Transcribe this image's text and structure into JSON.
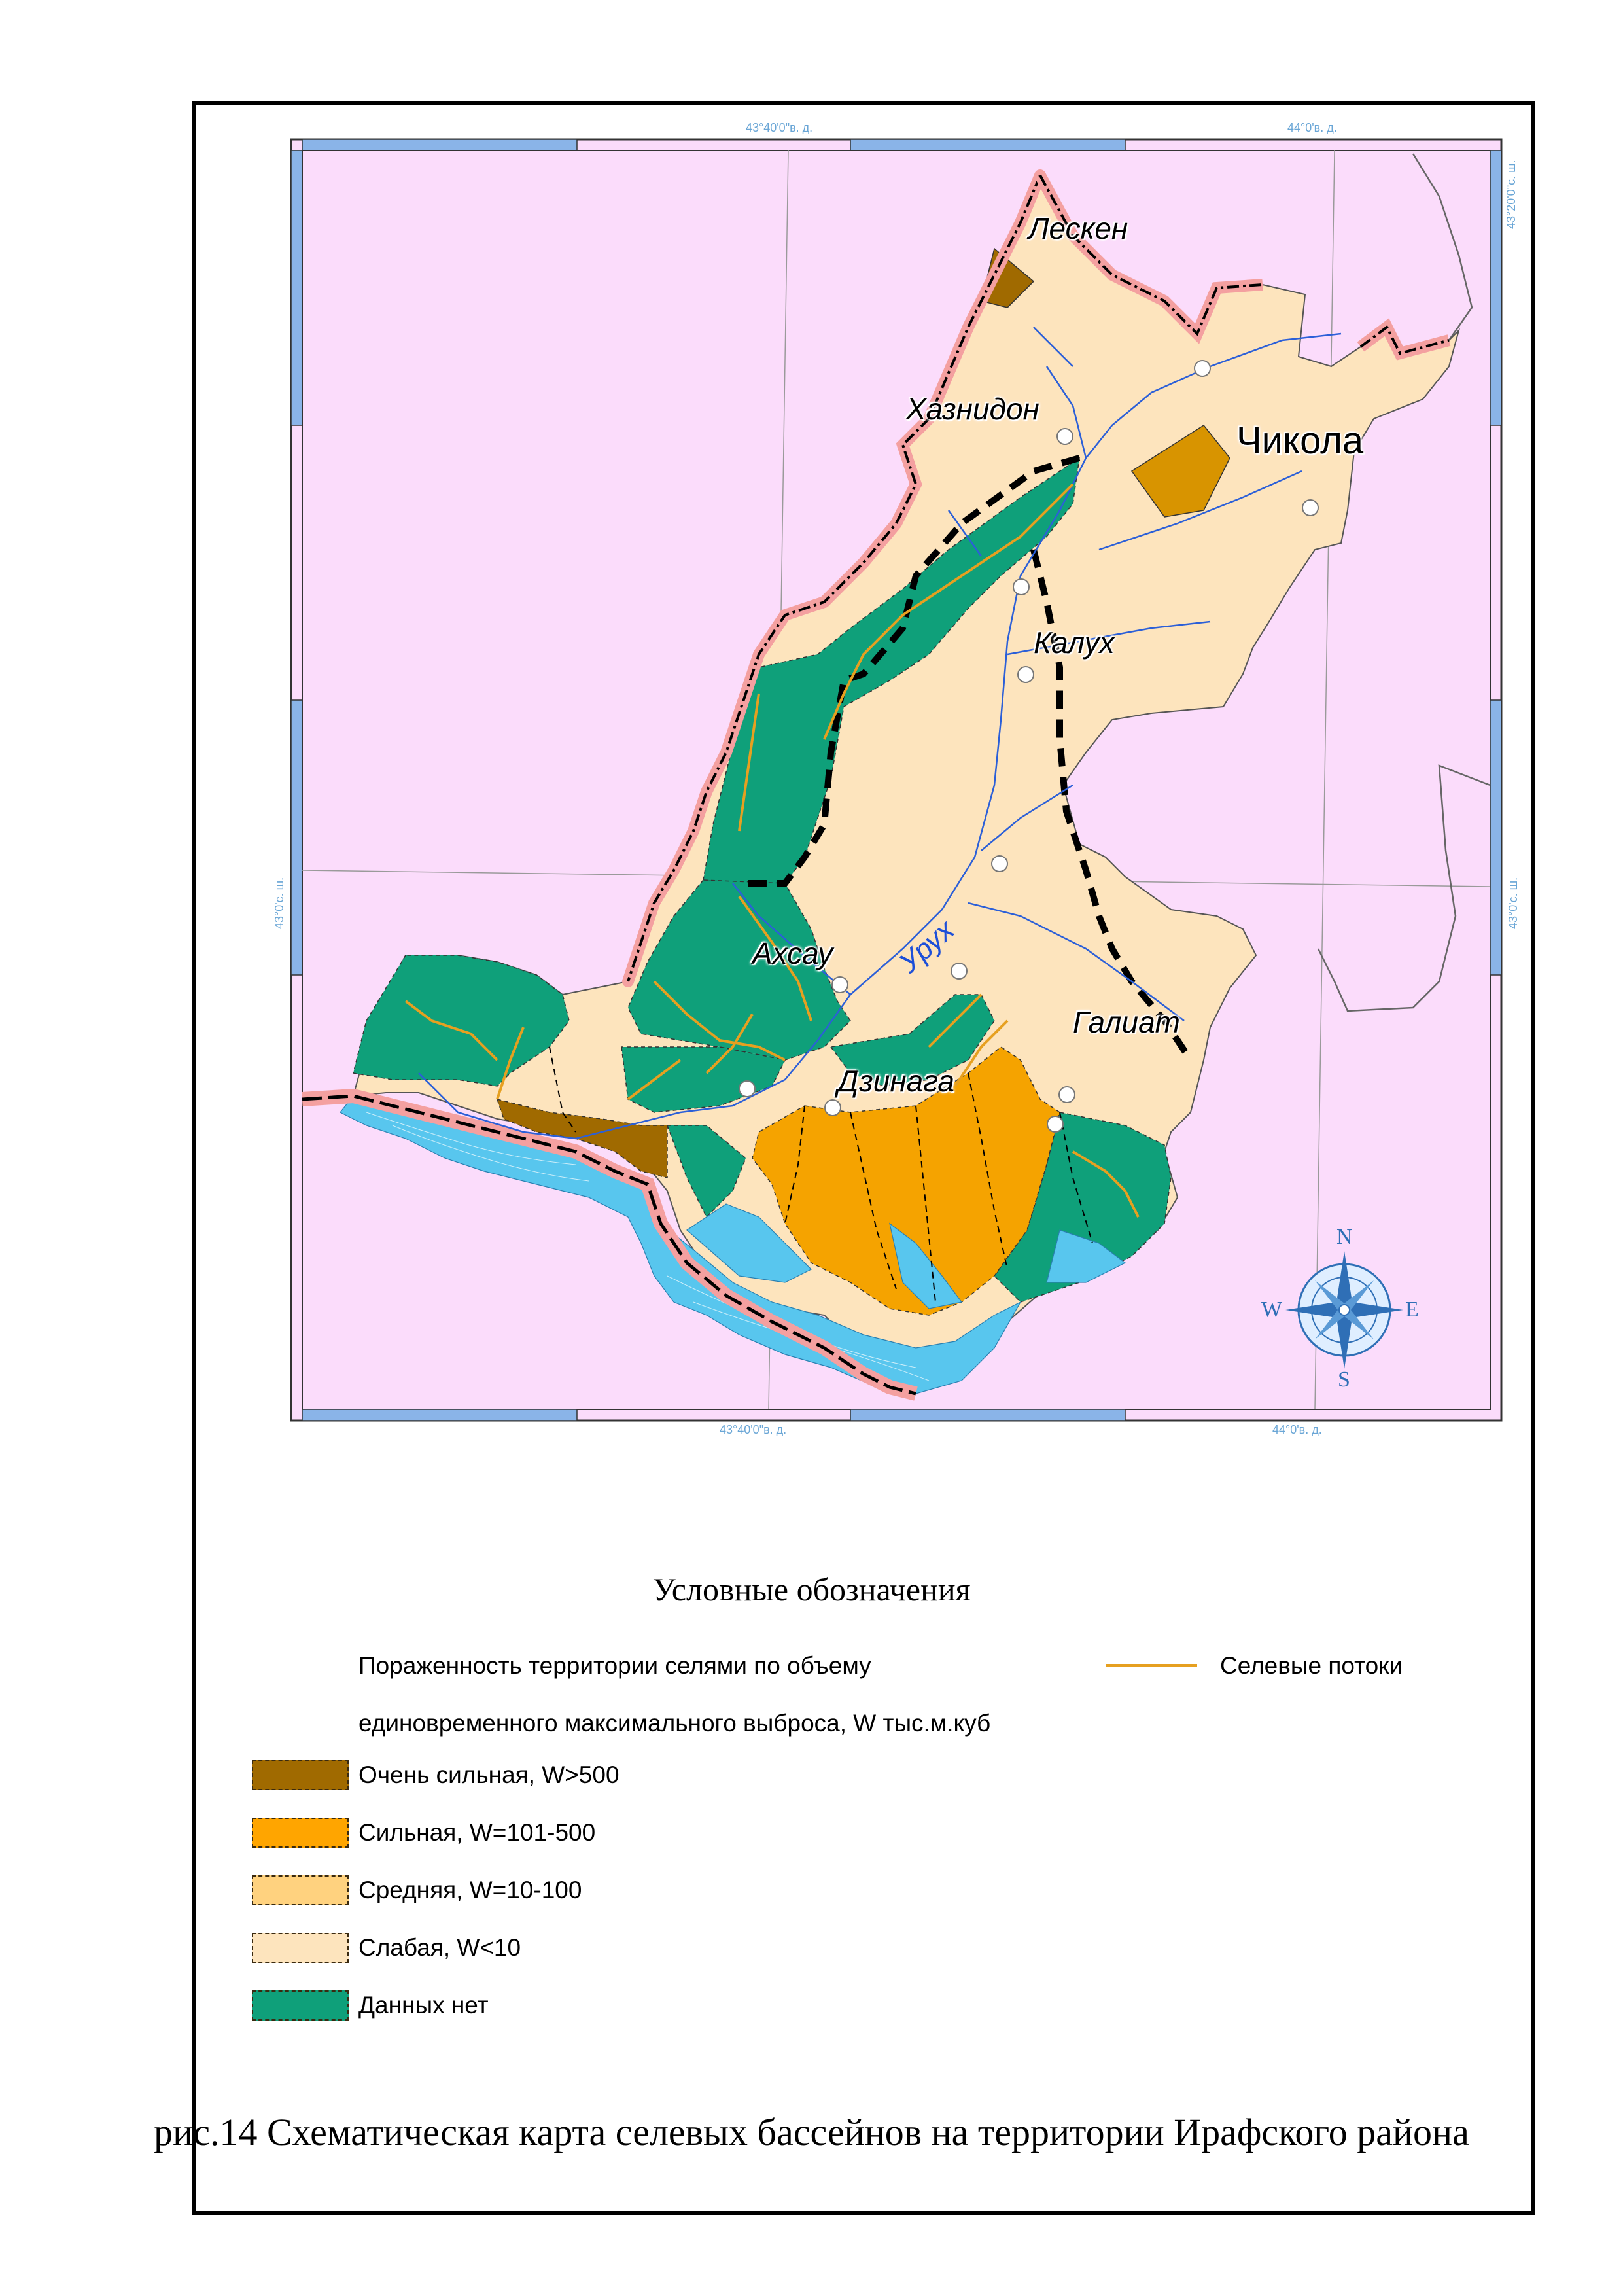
{
  "map": {
    "coords": {
      "top_left": "43°40'0\"в. д.",
      "top_right": "44°0'в. д.",
      "bottom_left": "43°40'0\"в. д.",
      "bottom_right": "44°0'в. д.",
      "right_top": "43°20'0\"с. ш.",
      "right_mid": "43°0'с. ш.",
      "left_mid": "43°0'с. ш."
    },
    "places": {
      "lesken": "Лескен",
      "khaznidon": "Хазнидон",
      "chikola": "Чикола",
      "kalukh": "Калух",
      "akhsau": "Ахсау",
      "galiat": "Галиат",
      "dzinaga": "Дзинага"
    },
    "river": "Урух",
    "compass": {
      "n": "N",
      "s": "S",
      "e": "E",
      "w": "W"
    },
    "colors": {
      "background": "#fbdcfb",
      "very_strong": "#a06a00",
      "strong": "#f5a300",
      "medium": "#fdd080",
      "weak": "#fde4bd",
      "no_data": "#0fa07a",
      "glacier": "#58c6ee",
      "mudflow": "#e6a020",
      "river": "#2b5fd8"
    }
  },
  "legend": {
    "title": "Условные обозначения",
    "heading_line1": "Пораженность территории селями по объему",
    "heading_line2": "единовременного максимального выброса, W тыс.м.куб",
    "items": [
      {
        "label": "Очень сильная, W>500",
        "color": "#a06a00"
      },
      {
        "label": "Сильная, W=101-500",
        "color": "#ffa500"
      },
      {
        "label": "Средняя, W=10-100",
        "color": "#ffd27f"
      },
      {
        "label": "Слабая, W<10",
        "color": "#fde4bd"
      },
      {
        "label": "Данных нет",
        "color": "#0fa07a"
      }
    ],
    "mudflow_label": "Селевые потоки"
  },
  "caption": "рис.14 Схематическая карта селевых бассейнов на территории Ирафского района"
}
